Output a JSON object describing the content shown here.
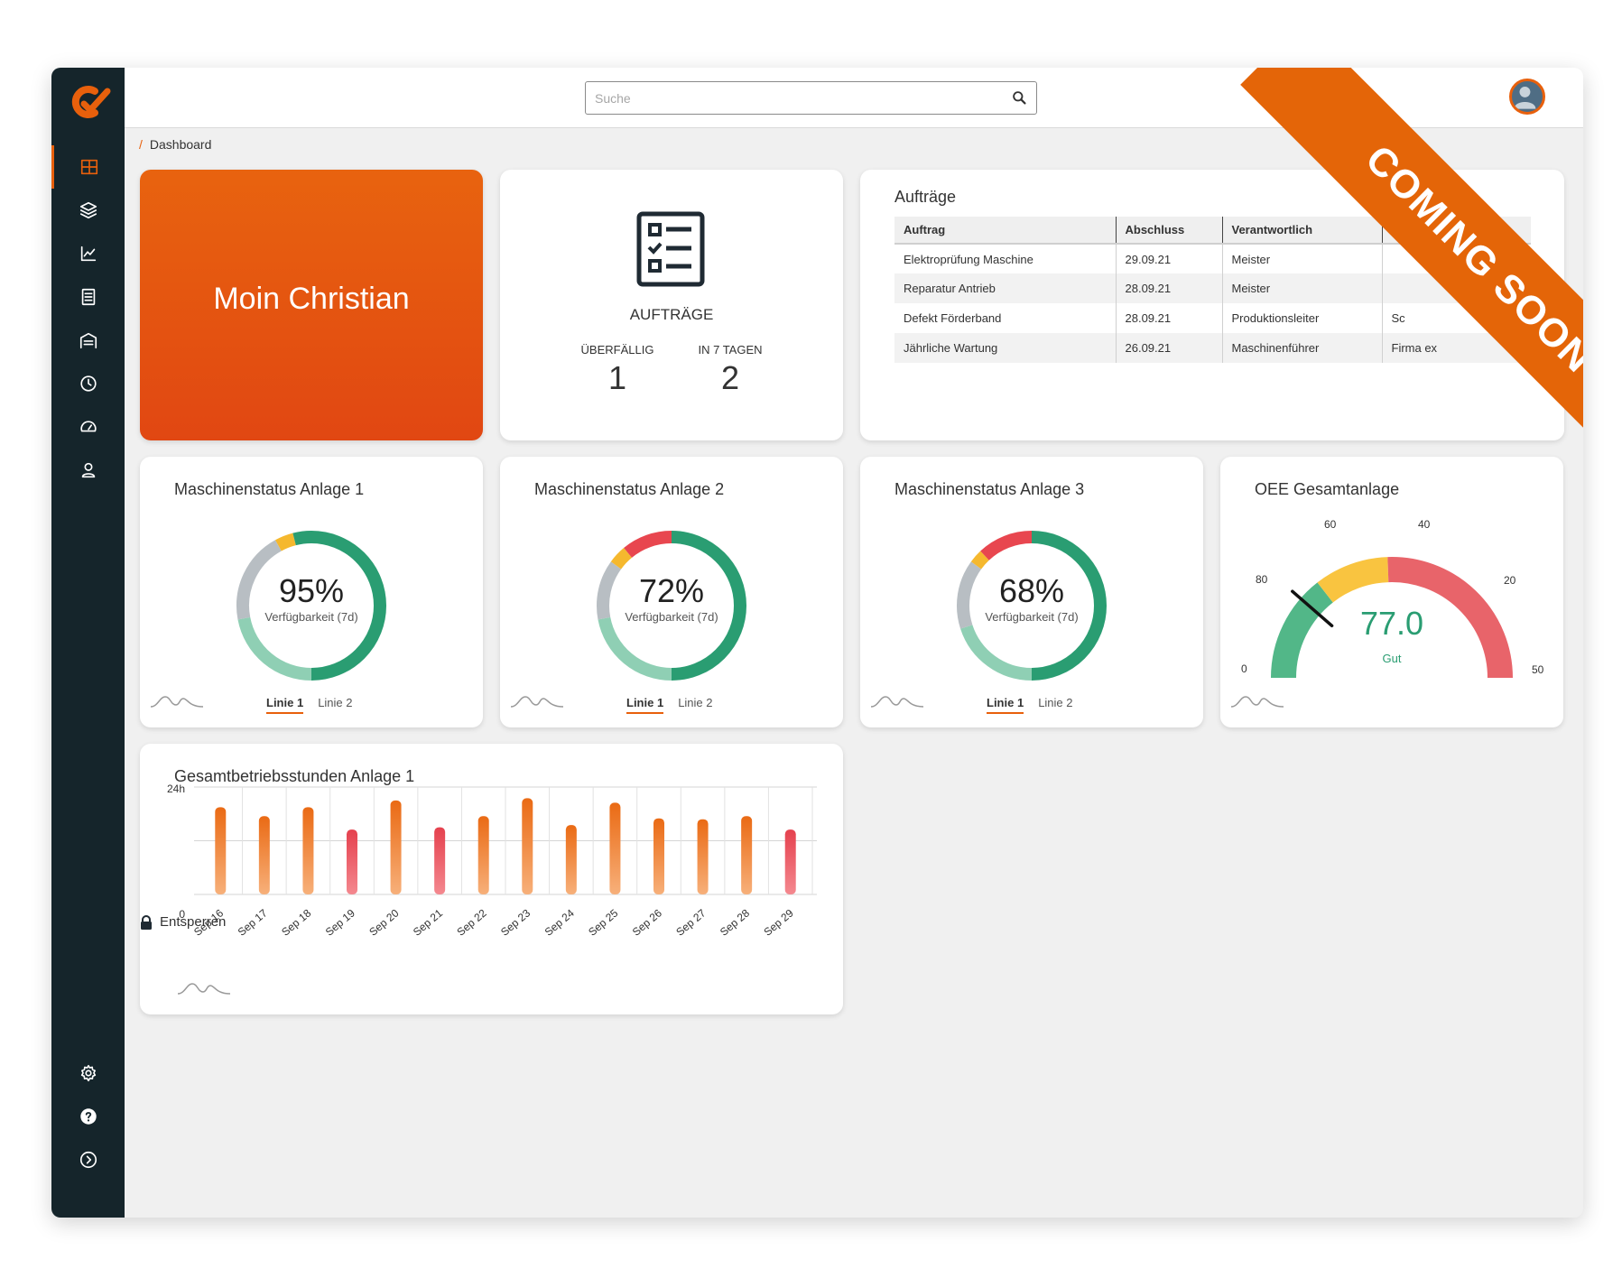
{
  "search": {
    "placeholder": "Suche"
  },
  "breadcrumb": {
    "current": "Dashboard"
  },
  "greeting": {
    "text": "Moin Christian"
  },
  "orders_summary": {
    "title": "AUFTRÄGE",
    "overdue_label": "ÜBERFÄLLIG",
    "overdue_value": "1",
    "next7_label": "IN 7 TAGEN",
    "next7_value": "2"
  },
  "orders_table": {
    "title": "Aufträge",
    "columns": [
      "Auftrag",
      "Abschluss",
      "Verantwortlich",
      ""
    ],
    "rows": [
      [
        "Elektroprüfung Maschine",
        "29.09.21",
        "Meister",
        ""
      ],
      [
        "Reparatur Antrieb",
        "28.09.21",
        "Meister",
        ""
      ],
      [
        "Defekt Förderband",
        "28.09.21",
        "Produktionsleiter",
        "Sc"
      ],
      [
        "Jährliche Wartung",
        "26.09.21",
        "Maschinenführer",
        "Firma ex"
      ]
    ]
  },
  "machines": [
    {
      "title": "Maschinenstatus Anlage 1",
      "percent": "95%",
      "value": 95,
      "sub": "Verfügbarkeit (7d)",
      "tab1": "Linie 1",
      "tab2": "Linie 2",
      "segments": [
        {
          "color": "#2a9d72",
          "frac": 0.5
        },
        {
          "color": "#8fcfb4",
          "frac": 0.22
        },
        {
          "color": "#b8bec3",
          "frac": 0.2
        },
        {
          "color": "#f5b82e",
          "frac": 0.04
        },
        {
          "color": "#2a9d72",
          "frac": 0.04
        }
      ]
    },
    {
      "title": "Maschinenstatus Anlage 2",
      "percent": "72%",
      "value": 72,
      "sub": "Verfügbarkeit (7d)",
      "tab1": "Linie 1",
      "tab2": "Linie 2",
      "segments": [
        {
          "color": "#2a9d72",
          "frac": 0.5
        },
        {
          "color": "#8fcfb4",
          "frac": 0.22
        },
        {
          "color": "#b8bec3",
          "frac": 0.13
        },
        {
          "color": "#f5b82e",
          "frac": 0.04
        },
        {
          "color": "#e8464f",
          "frac": 0.11
        }
      ]
    },
    {
      "title": "Maschinenstatus Anlage 3",
      "percent": "68%",
      "value": 68,
      "sub": "Verfügbarkeit (7d)",
      "tab1": "Linie 1",
      "tab2": "Linie 2",
      "segments": [
        {
          "color": "#2a9d72",
          "frac": 0.5
        },
        {
          "color": "#8fcfb4",
          "frac": 0.2
        },
        {
          "color": "#b8bec3",
          "frac": 0.15
        },
        {
          "color": "#f5b82e",
          "frac": 0.03
        },
        {
          "color": "#e8464f",
          "frac": 0.12
        }
      ]
    }
  ],
  "oee": {
    "title": "OEE Gesamtanlage",
    "value": "77.0",
    "value_num": 77,
    "label": "Gut",
    "ticks": [
      "0",
      "80",
      "60",
      "40",
      "20",
      "50"
    ],
    "colors": {
      "green": "#52b788",
      "yellow": "#f9c440",
      "red": "#e8646a"
    }
  },
  "chart_data": {
    "type": "bar",
    "title": "Gesamtbetriebsstunden Anlage 1",
    "categories": [
      "Sep 16",
      "Sep 17",
      "Sep 18",
      "Sep 19",
      "Sep 20",
      "Sep 21",
      "Sep 22",
      "Sep 23",
      "Sep 24",
      "Sep 25",
      "Sep 26",
      "Sep 27",
      "Sep 28",
      "Sep 29"
    ],
    "values": [
      19.5,
      17.5,
      19.5,
      14.5,
      21,
      15,
      17.5,
      21.5,
      15.5,
      20.5,
      17,
      16.8,
      17.5,
      14.5
    ],
    "highlight": [
      false,
      false,
      false,
      true,
      false,
      true,
      false,
      false,
      false,
      false,
      false,
      false,
      false,
      true
    ],
    "ytick_labels": [
      "24h",
      "0"
    ],
    "ylim": [
      0,
      24
    ],
    "grid": true
  },
  "footer": {
    "unlock": "Entsperren"
  },
  "ribbon": {
    "text": "COMING SOON ..."
  },
  "theme": {
    "accent": "#e8600c",
    "sidebar": "#15252b"
  }
}
